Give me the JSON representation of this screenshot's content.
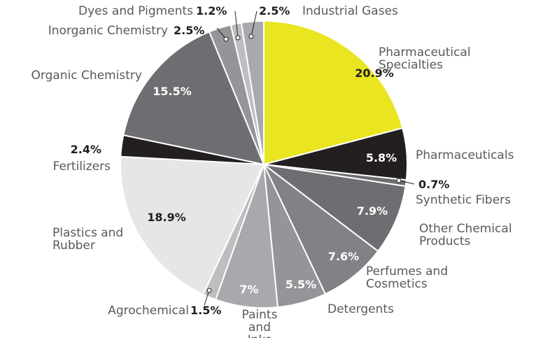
{
  "chart_data": {
    "type": "pie",
    "categories": [
      "Pharmaceutical Specialties",
      "Pharmaceuticals",
      "Synthetic Fibers",
      "Other Chemical Products",
      "Perfumes and Cosmetics",
      "Detergents",
      "Paints and Inks",
      "Agrochemical",
      "Plastics and Rubber",
      "Fertilizers",
      "Organic Chemistry",
      "Inorganic Chemistry",
      "Dyes and Pigments",
      "Industrial Gases"
    ],
    "values": [
      20.9,
      5.8,
      0.7,
      7.9,
      7.6,
      5.5,
      7,
      1.5,
      18.9,
      2.4,
      15.5,
      2.5,
      1.2,
      2.5
    ],
    "value_labels": [
      "20.9%",
      "5.8%",
      "0.7%",
      "7.9%",
      "7.6%",
      "5.5%",
      "7%",
      "1.5%",
      "18.9%",
      "2.4%",
      "15.5%",
      "2.5%",
      "1.2%",
      "2.5%"
    ],
    "colors": [
      "#e9e521",
      "#231f20",
      "#6d6e71",
      "#6d6e71",
      "#808285",
      "#939598",
      "#a7a9ac",
      "#bcbec0",
      "#e6e6e5",
      "#231f20",
      "#6d6e71",
      "#939598",
      "#bcbec0",
      "#a7a9ac"
    ]
  }
}
